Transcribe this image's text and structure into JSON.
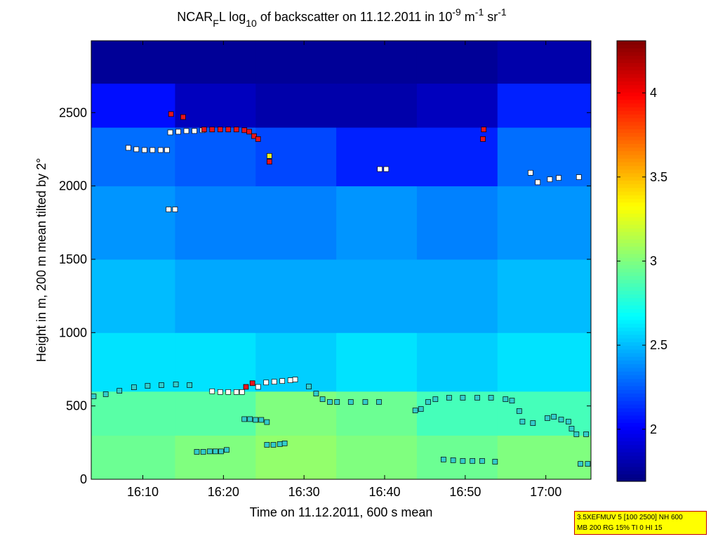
{
  "chart_data": {
    "type": "heatmap",
    "title": [
      {
        "text": "NCAR"
      },
      {
        "text": "F",
        "shift": "sub"
      },
      {
        "text": "L log"
      },
      {
        "text": "10",
        "shift": "sub"
      },
      {
        "text": " of backscatter on 11.12.2011 in 10"
      },
      {
        "text": "-9",
        "shift": "sup"
      },
      {
        "text": " m"
      },
      {
        "text": "-1",
        "shift": "sup"
      },
      {
        "text": " sr"
      },
      {
        "text": "-1",
        "shift": "sup"
      }
    ],
    "x_label": "Time on 11.12.2011, 600 s mean",
    "y_label": "Height in m, 200 m mean tilted by 2°",
    "xlim": [
      963.6,
      1025.6
    ],
    "xticks": [
      {
        "value": 970,
        "label": "16:10"
      },
      {
        "value": 980,
        "label": "16:20"
      },
      {
        "value": 990,
        "label": "16:30"
      },
      {
        "value": 1000,
        "label": "16:40"
      },
      {
        "value": 1010,
        "label": "16:50"
      },
      {
        "value": 1020,
        "label": "17:00"
      }
    ],
    "ylim": [
      0,
      2990
    ],
    "yticks": [
      0,
      500,
      1000,
      1500,
      2000,
      2500
    ],
    "x_edges": [
      963.6,
      974,
      984,
      994,
      1004,
      1014,
      1025.6
    ],
    "y_edges": [
      0,
      300,
      600,
      1000,
      1500,
      2000,
      2400,
      2700,
      2990
    ],
    "z": [
      [
        2.95,
        3.0,
        3.05,
        3.0,
        2.95,
        3.0
      ],
      [
        2.9,
        2.9,
        3.0,
        2.95,
        2.85,
        2.85
      ],
      [
        2.6,
        2.6,
        2.55,
        2.6,
        2.55,
        2.6
      ],
      [
        2.5,
        2.45,
        2.45,
        2.45,
        2.45,
        2.5
      ],
      [
        2.4,
        2.35,
        2.35,
        2.4,
        2.35,
        2.4
      ],
      [
        2.3,
        2.25,
        2.2,
        2.1,
        2.1,
        2.3
      ],
      [
        2.05,
        1.85,
        1.8,
        1.8,
        1.85,
        2.1
      ],
      [
        1.75,
        1.75,
        1.75,
        1.75,
        1.75,
        1.8
      ]
    ],
    "clim": [
      1.69,
      4.31
    ],
    "cticks": [
      2,
      2.5,
      3,
      3.5,
      4
    ],
    "colormap": "jet",
    "series": [
      {
        "color": "#33cccc",
        "x": [
          963.9,
          965.4,
          967.1,
          968.9,
          970.6,
          972.3,
          974.1,
          975.8,
          990.6,
          991.5,
          992.3,
          993.2,
          994.1,
          995.8,
          997.6,
          999.3,
          1003.8,
          1004.5,
          1005.4,
          1006.3,
          1008.0,
          1009.7,
          1011.5,
          1013.2,
          1015.0,
          1015.8,
          1016.7,
          1017.1,
          1018.4,
          1020.2,
          1021.0,
          1021.9,
          1022.8,
          1023.2,
          1023.8,
          1025.0,
          976.7,
          977.5,
          978.3,
          979,
          979.7,
          980.4,
          985.4,
          986.2,
          987,
          987.6,
          982.6,
          983.3,
          984,
          984.7,
          985.4,
          1007.3,
          1008.5,
          1009.7,
          1010.9,
          1012.1,
          1013.7,
          1024.3,
          1025.2
        ],
        "y": [
          565,
          580,
          603,
          627,
          637,
          642,
          647,
          642,
          632,
          584,
          546,
          527,
          527,
          527,
          527,
          527,
          469,
          479,
          527,
          546,
          556,
          556,
          556,
          556,
          546,
          536,
          465,
          393,
          383,
          417,
          426,
          407,
          393,
          345,
          307,
          307,
          187,
          187,
          190,
          190,
          190,
          200,
          235,
          235,
          240,
          245,
          410,
          410,
          405,
          405,
          390,
          135,
          130,
          125,
          125,
          125,
          120,
          105,
          105
        ]
      },
      {
        "color": "#ffffff",
        "x": [
          968.2,
          969.2,
          970.2,
          971.2,
          972.2,
          973.0,
          973.2,
          974.0,
          973.4,
          974.4,
          975.4,
          976.4,
          977.4,
          999.4,
          1000.2,
          1018.1,
          1019.0,
          1020.5,
          1021.6,
          1024.1,
          978.6,
          979.6,
          980.6,
          981.6,
          982.3,
          984.3,
          985.3,
          986.3,
          987.3,
          988.3,
          988.9
        ],
        "y": [
          2260,
          2250,
          2245,
          2245,
          2245,
          2245,
          1840,
          1840,
          2365,
          2370,
          2375,
          2375,
          2380,
          2115,
          2115,
          2090,
          2025,
          2045,
          2055,
          2060,
          600,
          595,
          595,
          595,
          595,
          630,
          660,
          665,
          670,
          675,
          680
        ]
      },
      {
        "color": "#e8141c",
        "x": [
          973.5,
          975.0,
          977.6,
          978.6,
          979.6,
          980.6,
          981.6,
          982.6,
          983.2,
          983.8,
          984.3,
          985.7,
          1012.3,
          1012.2,
          982.8,
          983.6
        ],
        "y": [
          2490,
          2470,
          2385,
          2385,
          2385,
          2385,
          2385,
          2380,
          2370,
          2340,
          2320,
          2165,
          2385,
          2320,
          630,
          655
        ]
      },
      {
        "color": "#f0f020",
        "x": [
          985.7
        ],
        "y": [
          2205
        ]
      }
    ],
    "info_box": [
      "3.5XEFMUV 5 [100 2500] NH 600",
      "MB 200 RG 15% TI 0 HI 15"
    ]
  }
}
